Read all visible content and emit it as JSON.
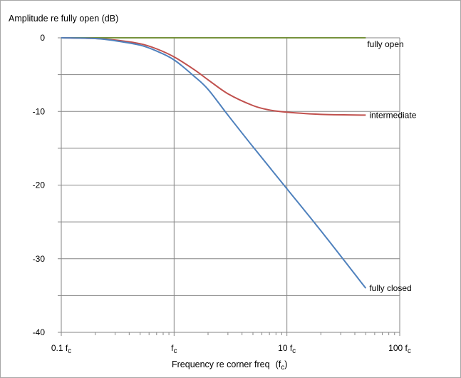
{
  "chart_data": {
    "type": "line",
    "title": "",
    "ylabel": "Amplitude re fully open (dB)",
    "xlabel": "Frequency re corner freq",
    "xlabel_suffix": "f",
    "xlabel_suffix_sub": "c",
    "x_scale": "log",
    "xlim": [
      0.1,
      100
    ],
    "ylim": [
      -40,
      0
    ],
    "x_ticks": [
      {
        "value": 0.1,
        "label": "0.1 f",
        "sub": "c"
      },
      {
        "value": 1,
        "label": "f",
        "sub": "c"
      },
      {
        "value": 10,
        "label": "10 f",
        "sub": "c"
      },
      {
        "value": 100,
        "label": "100 f",
        "sub": "c"
      }
    ],
    "y_ticks": [
      0,
      -10,
      -20,
      -30,
      -40
    ],
    "y_minor_ticks": [
      -5,
      -15,
      -25,
      -35
    ],
    "grid": true,
    "series": [
      {
        "name": "fully open",
        "color": "#76923c",
        "x": [
          0.1,
          0.2,
          0.5,
          1,
          2,
          5,
          10,
          20,
          50
        ],
        "y": [
          0,
          0,
          0,
          0,
          0,
          0,
          0,
          0,
          0
        ]
      },
      {
        "name": "intermediate",
        "color": "#c0504d",
        "x": [
          0.1,
          0.2,
          0.3,
          0.5,
          0.7,
          1,
          1.5,
          2,
          3,
          5,
          7,
          10,
          20,
          50
        ],
        "y": [
          0,
          -0.1,
          -0.3,
          -0.8,
          -1.5,
          -2.6,
          -4.3,
          -5.7,
          -7.6,
          -9.2,
          -9.8,
          -10.1,
          -10.4,
          -10.5
        ]
      },
      {
        "name": "fully closed",
        "color": "#4f81bd",
        "x": [
          0.1,
          0.2,
          0.3,
          0.5,
          0.7,
          1,
          1.5,
          2,
          3,
          5,
          10,
          20,
          50
        ],
        "y": [
          0,
          -0.1,
          -0.4,
          -1.0,
          -1.8,
          -3.0,
          -5.2,
          -7.0,
          -10.5,
          -14.8,
          -20.5,
          -26.2,
          -34.0
        ]
      }
    ]
  }
}
